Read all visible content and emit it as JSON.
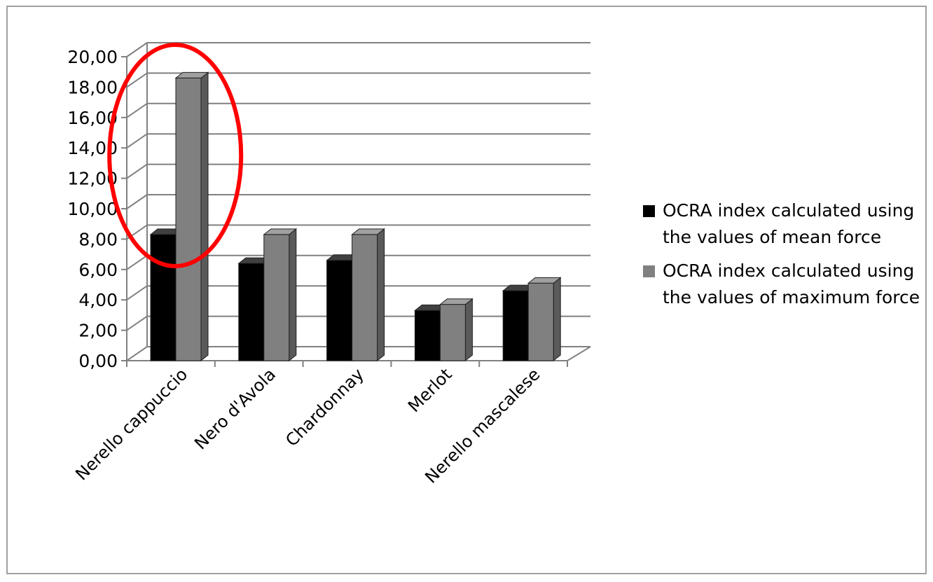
{
  "chart_data": {
    "type": "bar",
    "three_d": true,
    "categories": [
      "Nerello cappuccio",
      "Nero d'Avola",
      "Chardonnay",
      "Merlot",
      "Nerello mascalese"
    ],
    "series": [
      {
        "name": "OCRA index calculated using the values of mean force",
        "color": "#000000",
        "values": [
          8.3,
          6.4,
          6.6,
          3.3,
          4.6
        ]
      },
      {
        "name": "OCRA index calculated using the values of maximum force",
        "color": "#808080",
        "values": [
          18.6,
          8.3,
          8.3,
          3.7,
          5.1
        ]
      }
    ],
    "y_ticks": [
      "0,00",
      "2,00",
      "4,00",
      "6,00",
      "8,00",
      "10,00",
      "12,00",
      "14,00",
      "16,00",
      "18,00",
      "20,00"
    ],
    "ylim": [
      0,
      20
    ],
    "grid": true,
    "legend_position": "right",
    "annotation": {
      "shape": "ellipse",
      "color": "#ff0000",
      "target_category": "Nerello cappuccio"
    }
  }
}
